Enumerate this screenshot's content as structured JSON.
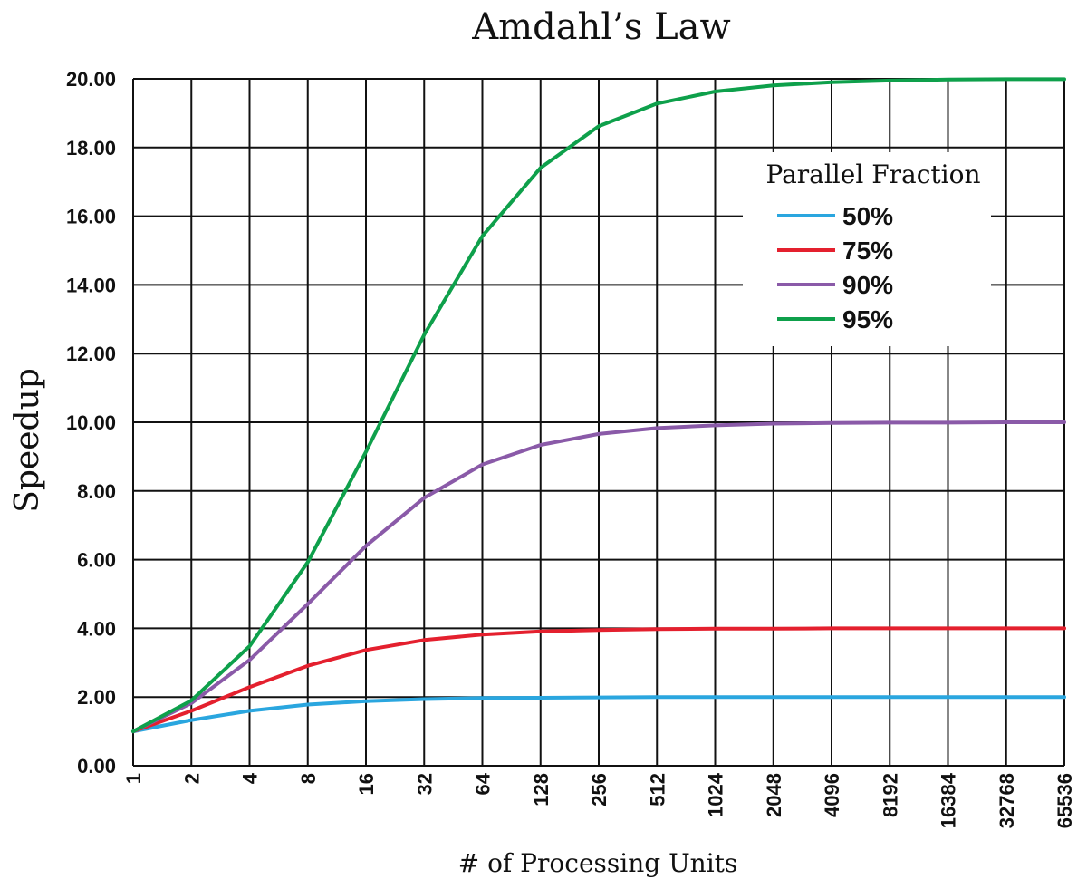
{
  "chart_data": {
    "type": "line",
    "title": "Amdahl’s Law",
    "xlabel": "# of Processing Units",
    "ylabel": "Speedup",
    "x": [
      "1",
      "2",
      "4",
      "8",
      "16",
      "32",
      "64",
      "128",
      "256",
      "512",
      "1024",
      "2048",
      "4096",
      "8192",
      "16384",
      "32768",
      "65536"
    ],
    "ylim": [
      0,
      20
    ],
    "yticks": [
      "0.00",
      "2.00",
      "4.00",
      "6.00",
      "8.00",
      "10.00",
      "12.00",
      "14.00",
      "16.00",
      "18.00",
      "20.00"
    ],
    "grid": true,
    "legend": {
      "title": "Parallel Fraction",
      "position": "top-right"
    },
    "series": [
      {
        "name": "50%",
        "color": "#2aa6df",
        "values": [
          1.0,
          1.33,
          1.6,
          1.78,
          1.88,
          1.94,
          1.97,
          1.98,
          1.99,
          2.0,
          2.0,
          2.0,
          2.0,
          2.0,
          2.0,
          2.0,
          2.0
        ]
      },
      {
        "name": "75%",
        "color": "#e4202e",
        "values": [
          1.0,
          1.6,
          2.29,
          2.91,
          3.37,
          3.66,
          3.82,
          3.91,
          3.95,
          3.98,
          3.99,
          3.99,
          4.0,
          4.0,
          4.0,
          4.0,
          4.0
        ]
      },
      {
        "name": "90%",
        "color": "#8a5aa8",
        "values": [
          1.0,
          1.82,
          3.08,
          4.71,
          6.4,
          7.8,
          8.77,
          9.34,
          9.66,
          9.83,
          9.91,
          9.96,
          9.98,
          9.99,
          9.99,
          10.0,
          10.0
        ]
      },
      {
        "name": "95%",
        "color": "#0ea04b",
        "values": [
          1.0,
          1.9,
          3.48,
          5.93,
          9.14,
          12.55,
          15.42,
          17.41,
          18.62,
          19.28,
          19.63,
          19.81,
          19.9,
          19.95,
          19.98,
          19.99,
          19.99
        ]
      }
    ]
  }
}
